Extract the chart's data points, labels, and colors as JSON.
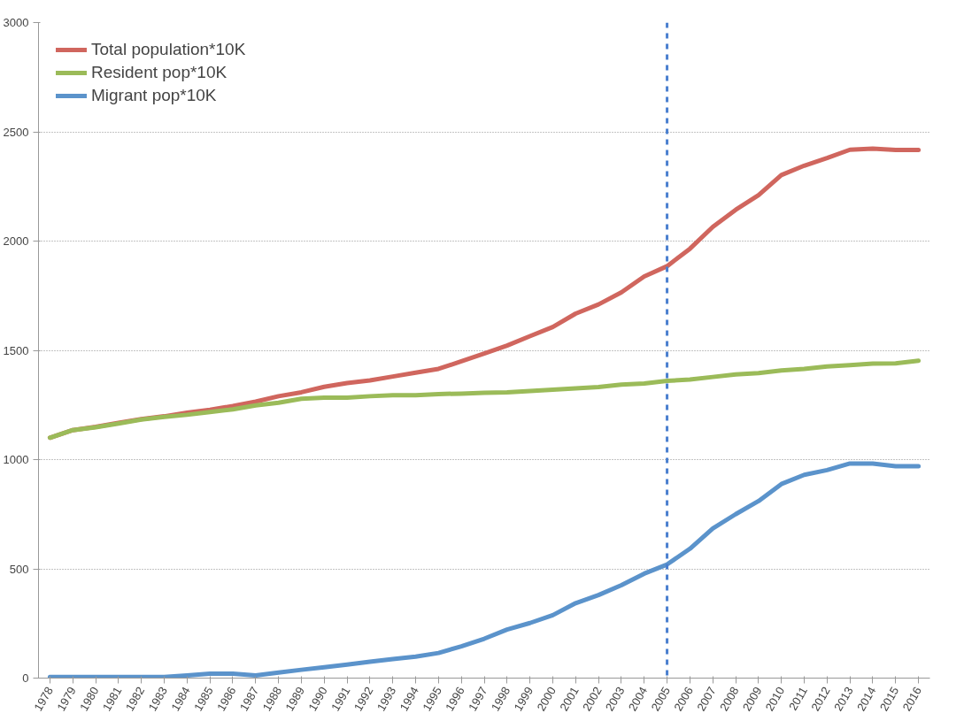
{
  "chart_data": {
    "type": "line",
    "categories": [
      "1978",
      "1979",
      "1980",
      "1981",
      "1982",
      "1983",
      "1984",
      "1985",
      "1986",
      "1987",
      "1988",
      "1989",
      "1990",
      "1991",
      "1992",
      "1993",
      "1994",
      "1995",
      "1996",
      "1997",
      "1998",
      "1999",
      "2000",
      "2001",
      "2002",
      "2003",
      "2004",
      "2005",
      "2006",
      "2007",
      "2008",
      "2009",
      "2010",
      "2011",
      "2012",
      "2013",
      "2014",
      "2015",
      "2016"
    ],
    "series": [
      {
        "name": "Total population*10K",
        "color": "#d0665e",
        "values": [
          1100,
          1135,
          1150,
          1168,
          1185,
          1198,
          1215,
          1228,
          1245,
          1265,
          1290,
          1308,
          1333,
          1350,
          1362,
          1380,
          1398,
          1415,
          1450,
          1485,
          1522,
          1565,
          1607,
          1668,
          1710,
          1765,
          1838,
          1885,
          1965,
          2065,
          2143,
          2210,
          2302,
          2345,
          2380,
          2418,
          2423,
          2417,
          2417
        ]
      },
      {
        "name": "Resident pop*10K",
        "color": "#9bbb59",
        "values": [
          1100,
          1135,
          1148,
          1165,
          1183,
          1195,
          1205,
          1218,
          1230,
          1248,
          1260,
          1278,
          1283,
          1283,
          1290,
          1295,
          1295,
          1300,
          1302,
          1306,
          1308,
          1314,
          1320,
          1326,
          1332,
          1343,
          1348,
          1360,
          1366,
          1378,
          1390,
          1396,
          1408,
          1415,
          1426,
          1432,
          1439,
          1440,
          1452
        ]
      },
      {
        "name": "Migrant pop*10K",
        "color": "#5b93cb",
        "values": [
          5,
          5,
          5,
          5,
          5,
          5,
          12,
          20,
          20,
          12,
          25,
          38,
          50,
          62,
          75,
          87,
          98,
          115,
          145,
          180,
          222,
          252,
          288,
          343,
          380,
          425,
          478,
          520,
          592,
          685,
          750,
          810,
          888,
          930,
          952,
          982,
          982,
          970,
          970
        ]
      }
    ],
    "ylim": [
      0,
      3000
    ],
    "yticks": [
      0,
      500,
      1000,
      1500,
      2000,
      2500,
      3000
    ],
    "ref_lines": [
      {
        "axis": "x",
        "value": "2005",
        "color": "#4a7fcf",
        "line_style": "dashed"
      }
    ],
    "grid": "y",
    "legend": "top left",
    "marker": "none",
    "line_style": "solid"
  }
}
